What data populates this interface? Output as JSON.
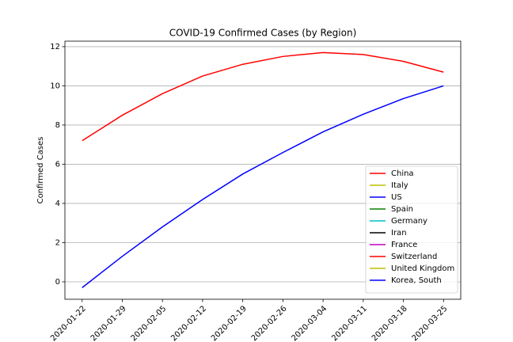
{
  "chart_data": {
    "type": "line",
    "title": "COVID-19 Confirmed Cases (by Region)",
    "ylabel": "Confirmed Cases",
    "x": [
      "2020-01-22",
      "2020-01-29",
      "2020-02-05",
      "2020-02-12",
      "2020-02-19",
      "2020-02-26",
      "2020-03-04",
      "2020-03-11",
      "2020-03-18",
      "2020-03-25"
    ],
    "xlim": [
      "2020-01-19",
      "2020-03-28"
    ],
    "xticks": [
      "2020-01-22",
      "2020-01-29",
      "2020-02-05",
      "2020-02-12",
      "2020-02-19",
      "2020-02-26",
      "2020-03-04",
      "2020-03-11",
      "2020-03-18",
      "2020-03-25"
    ],
    "ylim": [
      -0.89,
      12.28
    ],
    "yticks": [
      0,
      2,
      4,
      6,
      8,
      10,
      12
    ],
    "grid": true,
    "legend": "lower right",
    "series": [
      {
        "name": "China",
        "color": "#ff0000",
        "values": [
          7.2,
          8.5,
          9.6,
          10.5,
          11.1,
          11.5,
          11.7,
          11.6,
          11.25,
          10.7
        ]
      },
      {
        "name": "Italy",
        "color": "#bfbf00",
        "values": [
          null,
          null,
          null,
          null,
          null,
          null,
          null,
          null,
          null,
          null
        ]
      },
      {
        "name": "US",
        "color": "#0000ff",
        "values": [
          -0.3,
          1.3,
          2.8,
          4.2,
          5.5,
          6.6,
          7.65,
          8.55,
          9.35,
          10.0
        ]
      },
      {
        "name": "Spain",
        "color": "#008000",
        "values": [
          null,
          null,
          null,
          null,
          null,
          null,
          null,
          null,
          null,
          null
        ]
      },
      {
        "name": "Germany",
        "color": "#00bfbf",
        "values": [
          null,
          null,
          null,
          null,
          null,
          null,
          null,
          null,
          null,
          null
        ]
      },
      {
        "name": "Iran",
        "color": "#000000",
        "values": [
          null,
          null,
          null,
          null,
          null,
          null,
          null,
          null,
          null,
          null
        ]
      },
      {
        "name": "France",
        "color": "#bf00bf",
        "values": [
          null,
          null,
          null,
          null,
          null,
          null,
          null,
          null,
          null,
          null
        ]
      },
      {
        "name": "Switzerland",
        "color": "#ff0000",
        "values": [
          null,
          null,
          null,
          null,
          null,
          null,
          null,
          null,
          null,
          null
        ]
      },
      {
        "name": "United Kingdom",
        "color": "#bfbf00",
        "values": [
          null,
          null,
          null,
          null,
          null,
          null,
          null,
          null,
          null,
          null
        ]
      },
      {
        "name": "Korea, South",
        "color": "#0000ff",
        "values": [
          null,
          null,
          null,
          null,
          null,
          null,
          null,
          null,
          null,
          null
        ]
      }
    ]
  }
}
